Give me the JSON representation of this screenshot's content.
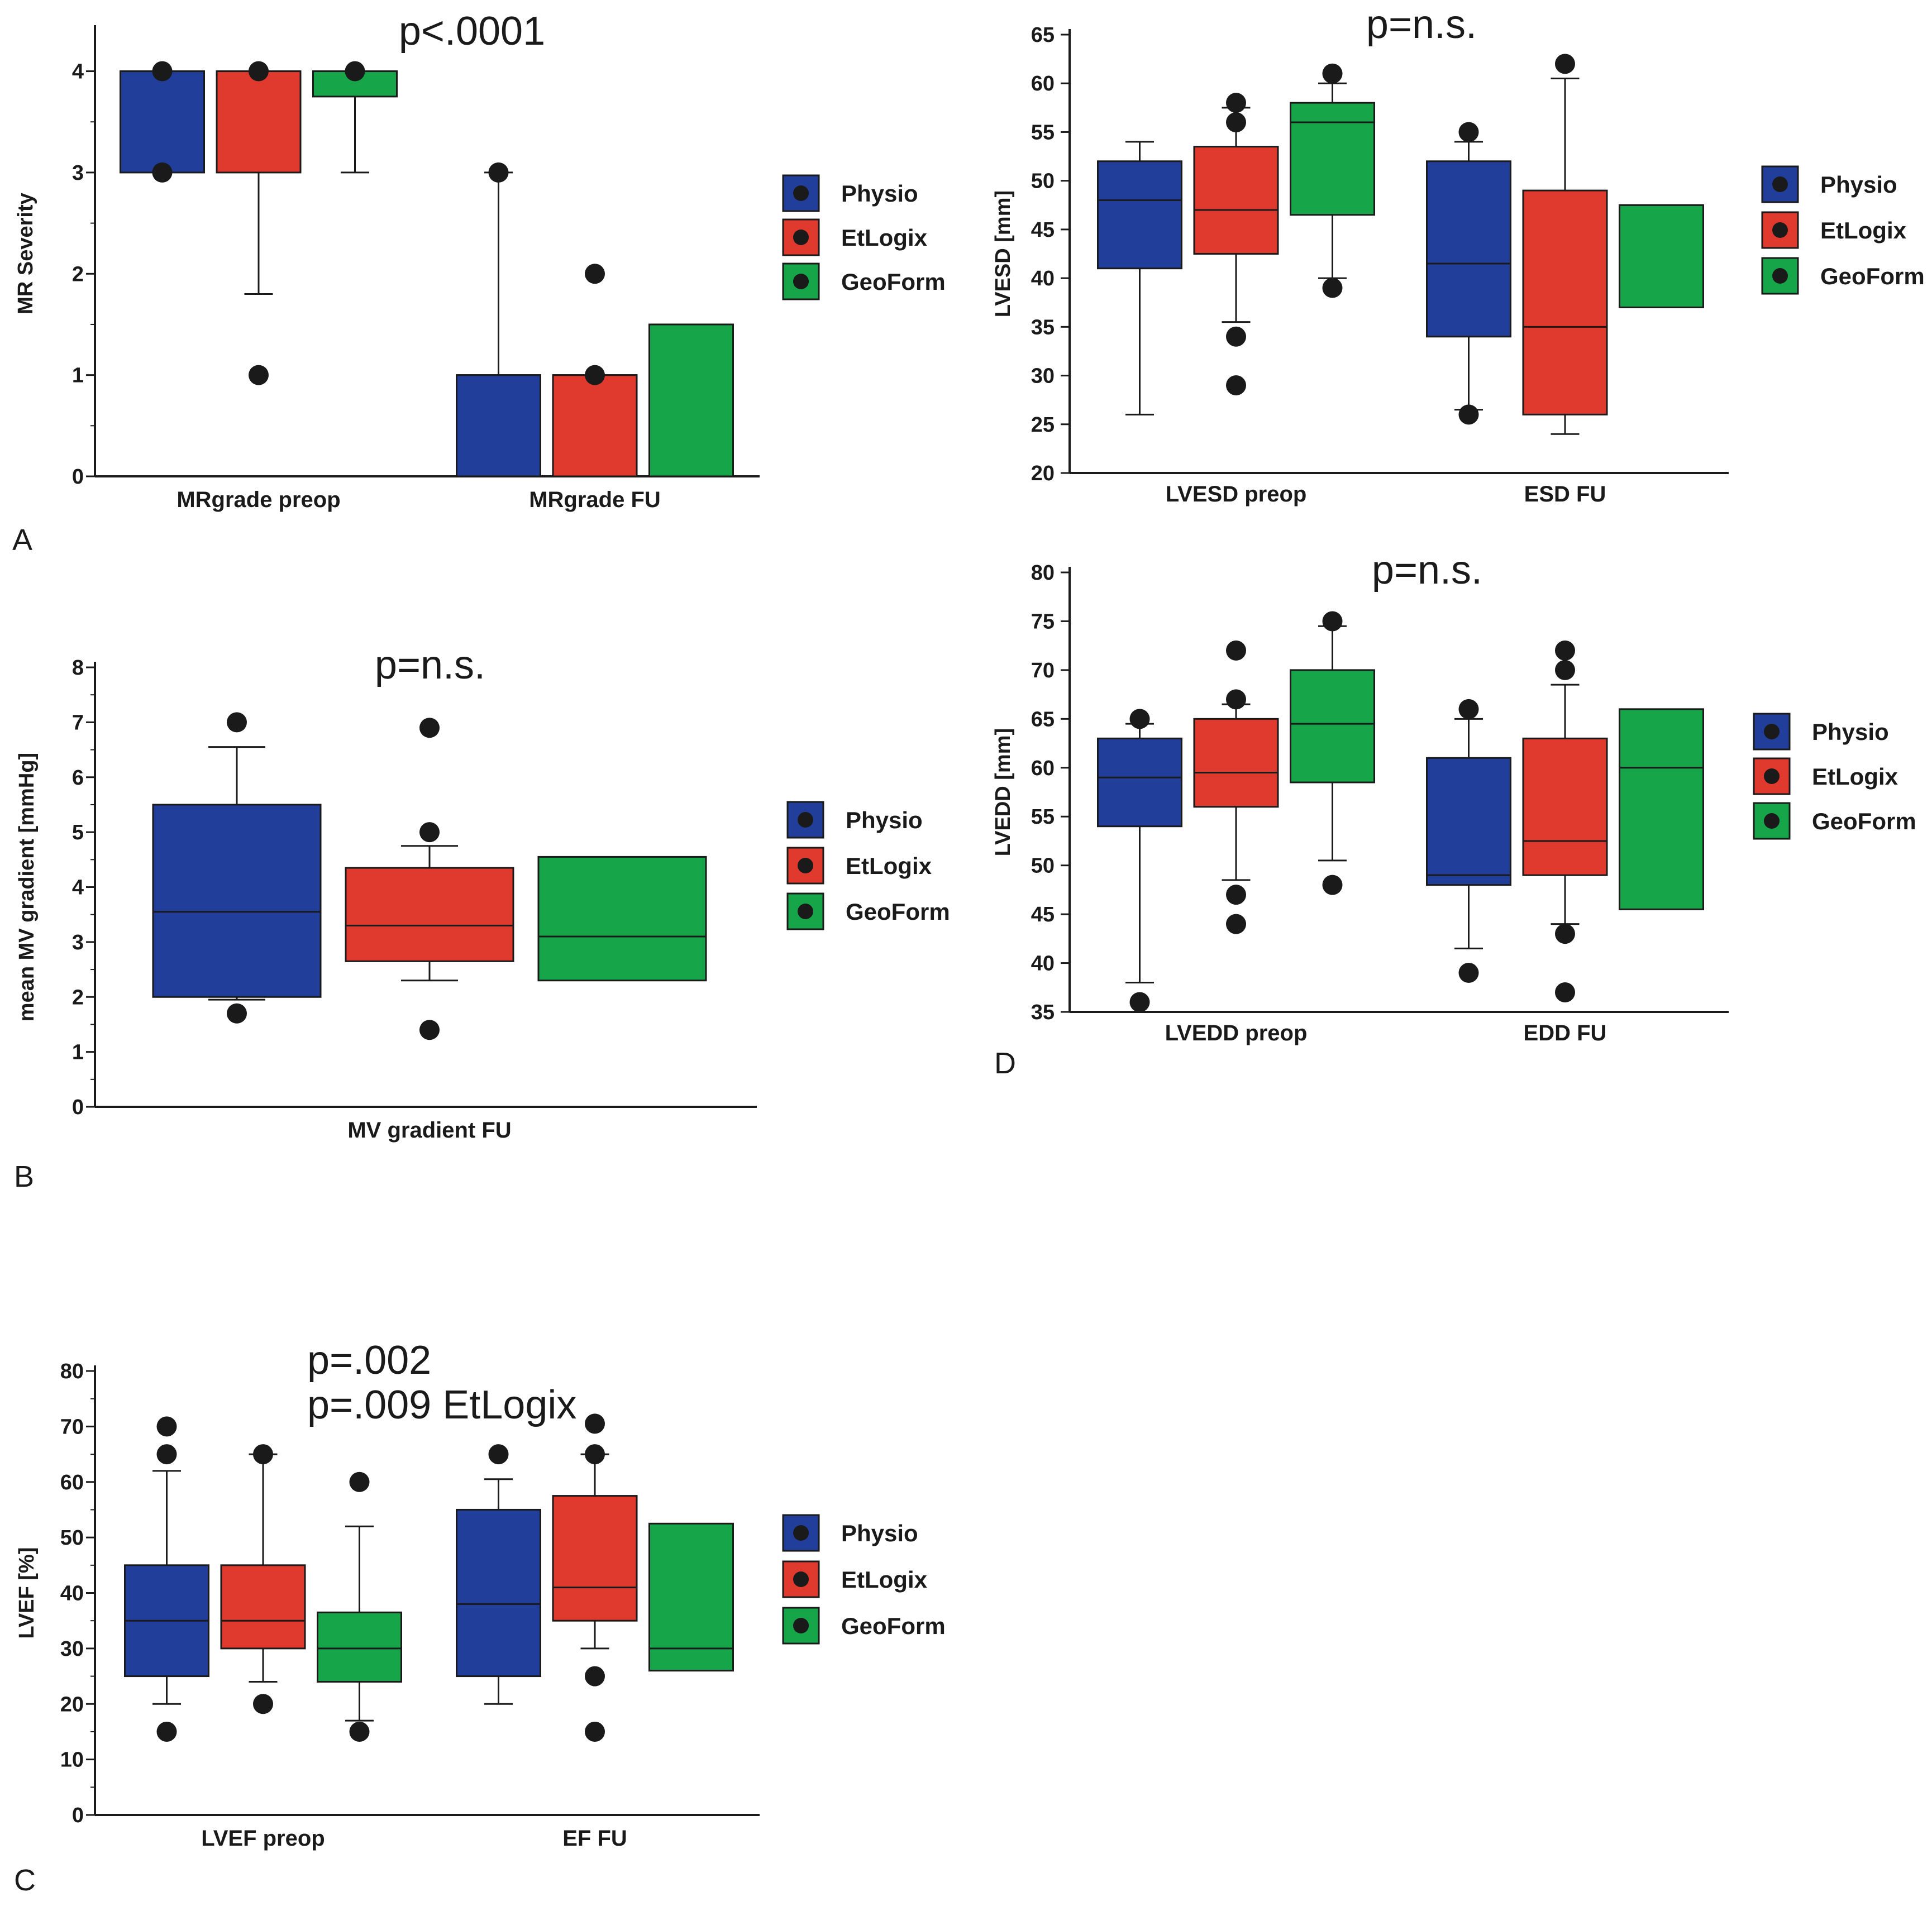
{
  "colors": {
    "Physio": "#213f9a",
    "EtLogix": "#e03a2e",
    "GeoForm": "#17a54a",
    "axis": "#1a1a1a",
    "outlier": "#1a1a1a"
  },
  "legend_labels": [
    "Physio",
    "EtLogix",
    "GeoForm"
  ],
  "chart_data": [
    {
      "panel": "A",
      "type": "box",
      "p_text": [
        "p<.0001"
      ],
      "ylabel": "MR Severity",
      "ylim": [
        0,
        4.4
      ],
      "yticks": [
        0,
        1,
        2,
        3,
        4
      ],
      "minor_step": 0.5,
      "groups": [
        {
          "label": "MRgrade preop",
          "boxes": [
            {
              "series": "Physio",
              "q1": 3,
              "median": 4,
              "q3": 4,
              "whisker_low": 3,
              "whisker_high": 4,
              "outliers": [
                3,
                4
              ]
            },
            {
              "series": "EtLogix",
              "q1": 3,
              "median": 4,
              "q3": 4,
              "whisker_low": 1.8,
              "whisker_high": 4,
              "outliers": [
                1,
                4
              ]
            },
            {
              "series": "GeoForm",
              "q1": 3.75,
              "median": 4,
              "q3": 4,
              "whisker_low": 3,
              "whisker_high": 4,
              "outliers": [
                4
              ]
            }
          ]
        },
        {
          "label": "MRgrade FU",
          "boxes": [
            {
              "series": "Physio",
              "q1": 0,
              "median": 1,
              "q3": 1,
              "whisker_low": 0,
              "whisker_high": 3,
              "outliers": [
                3
              ]
            },
            {
              "series": "EtLogix",
              "q1": 0,
              "median": 1,
              "q3": 1,
              "whisker_low": 0,
              "whisker_high": 1,
              "outliers": [
                1,
                2
              ]
            },
            {
              "series": "GeoForm",
              "q1": 0,
              "median": 1.5,
              "q3": 1.5,
              "whisker_low": 0,
              "whisker_high": 1.5,
              "outliers": []
            }
          ]
        }
      ]
    },
    {
      "panel": "B",
      "type": "box",
      "p_text": [
        "p=n.s."
      ],
      "ylabel": "mean MV gradient [mmHg]",
      "ylim": [
        0,
        8
      ],
      "yticks": [
        0,
        1,
        2,
        3,
        4,
        5,
        6,
        7,
        8
      ],
      "minor_step": 0.5,
      "groups": [
        {
          "label": "MV gradient FU",
          "boxes": [
            {
              "series": "Physio",
              "q1": 2,
              "median": 3.55,
              "q3": 5.5,
              "whisker_low": 1.95,
              "whisker_high": 6.55,
              "outliers": [
                1.7,
                7
              ]
            },
            {
              "series": "EtLogix",
              "q1": 2.65,
              "median": 3.3,
              "q3": 4.35,
              "whisker_low": 2.3,
              "whisker_high": 4.75,
              "outliers": [
                1.4,
                5,
                6.9
              ]
            },
            {
              "series": "GeoForm",
              "q1": 2.3,
              "median": 3.1,
              "q3": 4.55,
              "whisker_low": 2.3,
              "whisker_high": 4.55,
              "outliers": []
            }
          ]
        }
      ]
    },
    {
      "panel": "C",
      "type": "box",
      "p_text": [
        "p=.002",
        "p=.009 EtLogix"
      ],
      "ylabel": "LVEF [%]",
      "ylim": [
        0,
        80
      ],
      "yticks": [
        0,
        10,
        20,
        30,
        40,
        50,
        60,
        70,
        80
      ],
      "minor_step": 5,
      "groups": [
        {
          "label": "LVEF preop",
          "boxes": [
            {
              "series": "Physio",
              "q1": 25,
              "median": 35,
              "q3": 45,
              "whisker_low": 20,
              "whisker_high": 62,
              "outliers": [
                15,
                65,
                70
              ]
            },
            {
              "series": "EtLogix",
              "q1": 30,
              "median": 35,
              "q3": 45,
              "whisker_low": 24,
              "whisker_high": 65,
              "outliers": [
                20,
                65
              ]
            },
            {
              "series": "GeoForm",
              "q1": 24,
              "median": 30,
              "q3": 36.5,
              "whisker_low": 17,
              "whisker_high": 52,
              "outliers": [
                15,
                60
              ]
            }
          ]
        },
        {
          "label": "EF FU",
          "boxes": [
            {
              "series": "Physio",
              "q1": 25,
              "median": 38,
              "q3": 55,
              "whisker_low": 20,
              "whisker_high": 60.5,
              "outliers": [
                65
              ]
            },
            {
              "series": "EtLogix",
              "q1": 35,
              "median": 41,
              "q3": 57.5,
              "whisker_low": 30,
              "whisker_high": 65,
              "outliers": [
                15,
                25,
                65,
                70.5
              ]
            },
            {
              "series": "GeoForm",
              "q1": 26,
              "median": 30,
              "q3": 52.5,
              "whisker_low": 26,
              "whisker_high": 52.5,
              "outliers": []
            }
          ]
        }
      ]
    },
    {
      "panel": "ESD",
      "type": "box",
      "p_text": [
        "p=n.s."
      ],
      "ylabel": "LVESD [mm]",
      "ylim": [
        20,
        65
      ],
      "yticks": [
        20,
        25,
        30,
        35,
        40,
        45,
        50,
        55,
        60,
        65
      ],
      "minor_step": 0,
      "groups": [
        {
          "label": "LVESD preop",
          "boxes": [
            {
              "series": "Physio",
              "q1": 41,
              "median": 48,
              "q3": 52,
              "whisker_low": 26,
              "whisker_high": 54,
              "outliers": []
            },
            {
              "series": "EtLogix",
              "q1": 42.5,
              "median": 47,
              "q3": 53.5,
              "whisker_low": 35.5,
              "whisker_high": 57.5,
              "outliers": [
                29,
                34,
                56,
                58
              ]
            },
            {
              "series": "GeoForm",
              "q1": 46.5,
              "median": 56,
              "q3": 58,
              "whisker_low": 40,
              "whisker_high": 60,
              "outliers": [
                39,
                61
              ]
            }
          ]
        },
        {
          "label": "ESD FU",
          "boxes": [
            {
              "series": "Physio",
              "q1": 34,
              "median": 41.5,
              "q3": 52,
              "whisker_low": 26.5,
              "whisker_high": 54,
              "outliers": [
                26,
                55
              ]
            },
            {
              "series": "EtLogix",
              "q1": 26,
              "median": 35,
              "q3": 49,
              "whisker_low": 24,
              "whisker_high": 60.5,
              "outliers": [
                62
              ]
            },
            {
              "series": "GeoForm",
              "q1": 37,
              "median": 47.5,
              "q3": 47.5,
              "whisker_low": 37,
              "whisker_high": 47.5,
              "outliers": []
            }
          ]
        }
      ]
    },
    {
      "panel": "D",
      "type": "box",
      "p_text": [
        "p=n.s."
      ],
      "ylabel": "LVEDD [mm]",
      "ylim": [
        35,
        80
      ],
      "yticks": [
        35,
        40,
        45,
        50,
        55,
        60,
        65,
        70,
        75,
        80
      ],
      "minor_step": 0,
      "groups": [
        {
          "label": "LVEDD preop",
          "boxes": [
            {
              "series": "Physio",
              "q1": 54,
              "median": 59,
              "q3": 63,
              "whisker_low": 38,
              "whisker_high": 64.5,
              "outliers": [
                36,
                65
              ]
            },
            {
              "series": "EtLogix",
              "q1": 56,
              "median": 59.5,
              "q3": 65,
              "whisker_low": 48.5,
              "whisker_high": 66.5,
              "outliers": [
                44,
                47,
                67,
                72
              ]
            },
            {
              "series": "GeoForm",
              "q1": 58.5,
              "median": 64.5,
              "q3": 70,
              "whisker_low": 50.5,
              "whisker_high": 74.5,
              "outliers": [
                48,
                75
              ]
            }
          ]
        },
        {
          "label": "EDD FU",
          "boxes": [
            {
              "series": "Physio",
              "q1": 48,
              "median": 49,
              "q3": 61,
              "whisker_low": 41.5,
              "whisker_high": 65,
              "outliers": [
                39,
                66
              ]
            },
            {
              "series": "EtLogix",
              "q1": 49,
              "median": 52.5,
              "q3": 63,
              "whisker_low": 44,
              "whisker_high": 68.5,
              "outliers": [
                37,
                43,
                70,
                72
              ]
            },
            {
              "series": "GeoForm",
              "q1": 45.5,
              "median": 60,
              "q3": 66,
              "whisker_low": 45.5,
              "whisker_high": 66,
              "outliers": []
            }
          ]
        }
      ]
    }
  ]
}
